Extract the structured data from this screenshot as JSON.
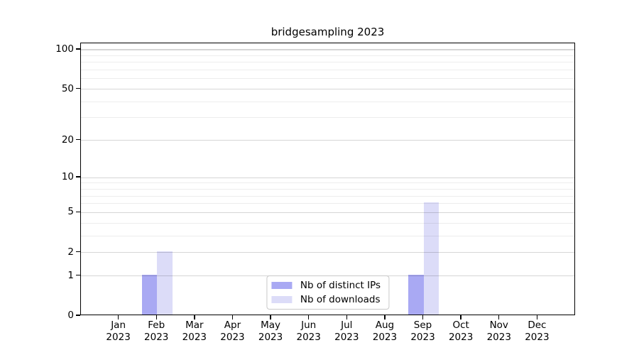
{
  "chart_data": {
    "type": "bar",
    "title": "bridgesampling 2023",
    "months": [
      "Jan",
      "Feb",
      "Mar",
      "Apr",
      "May",
      "Jun",
      "Jul",
      "Aug",
      "Sep",
      "Oct",
      "Nov",
      "Dec"
    ],
    "year": "2023",
    "series": [
      {
        "name": "Nb of distinct IPs",
        "color": "#a9a9f3",
        "values": [
          0,
          1,
          0,
          0,
          0,
          0,
          0,
          0,
          1,
          0,
          0,
          0
        ]
      },
      {
        "name": "Nb of downloads",
        "color": "#dcdcf8",
        "values": [
          0,
          2,
          0,
          0,
          0,
          0,
          0,
          0,
          6,
          0,
          0,
          0
        ]
      }
    ],
    "yscale": "log10(1+y)",
    "ylim": [
      0,
      112
    ],
    "ytick_values": [
      0,
      1,
      2,
      5,
      10,
      20,
      50,
      100
    ],
    "ytick_labels": [
      "0",
      "1",
      "2",
      "5",
      "10",
      "20",
      "50",
      "100"
    ],
    "minor_grid_values": [
      3,
      4,
      6,
      7,
      8,
      9,
      30,
      40,
      60,
      70,
      80,
      90
    ],
    "grid": "horizontal major+minor",
    "legend_position": "inside bottom-center"
  }
}
